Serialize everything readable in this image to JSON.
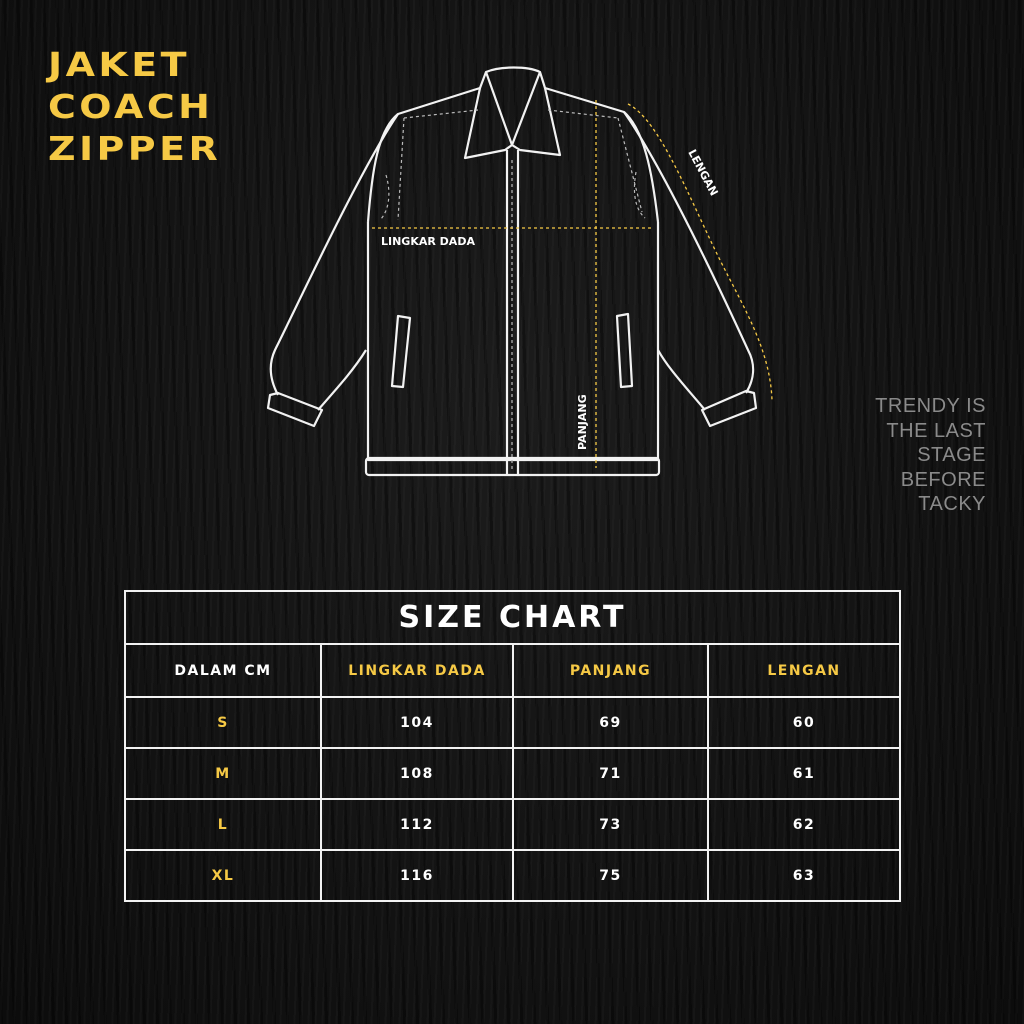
{
  "title": [
    "JAKET",
    "COACH",
    "ZIPPER"
  ],
  "quote": [
    "TRENDY IS",
    "THE LAST",
    "STAGE",
    "BEFORE",
    "TACKY"
  ],
  "diagram": {
    "chest_label": "LINGKAR DADA",
    "length_label": "PANJANG",
    "sleeve_label": "LENGAN"
  },
  "colors": {
    "accent": "#f6c945",
    "background": "#121212",
    "line": "#f2f2f2"
  },
  "size_chart": {
    "title": "SIZE CHART",
    "headers": [
      "DALAM CM",
      "LINGKAR DADA",
      "PANJANG",
      "LENGAN"
    ],
    "rows": [
      {
        "size": "S",
        "chest": "104",
        "length": "69",
        "sleeve": "60"
      },
      {
        "size": "M",
        "chest": "108",
        "length": "71",
        "sleeve": "61"
      },
      {
        "size": "L",
        "chest": "112",
        "length": "73",
        "sleeve": "62"
      },
      {
        "size": "XL",
        "chest": "116",
        "length": "75",
        "sleeve": "63"
      }
    ]
  }
}
